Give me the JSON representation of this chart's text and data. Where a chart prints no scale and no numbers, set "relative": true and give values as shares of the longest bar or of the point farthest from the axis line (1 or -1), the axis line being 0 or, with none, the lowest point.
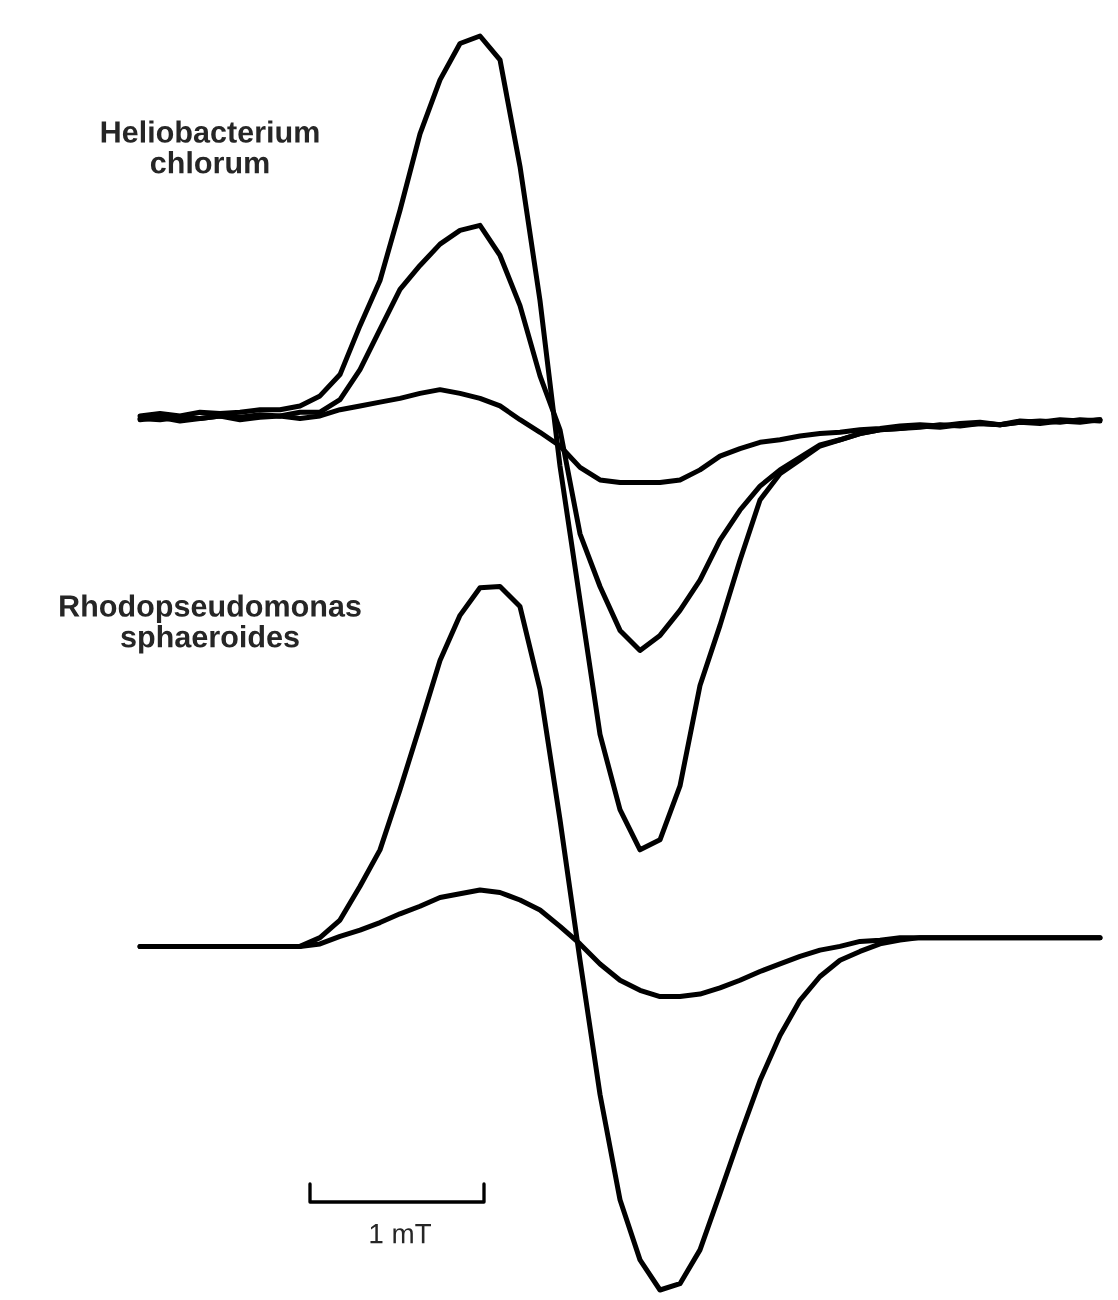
{
  "chart_data": {
    "type": "line",
    "relative": true,
    "categories": [
      null,
      null,
      null,
      null,
      null,
      null,
      null,
      null,
      null,
      null,
      null,
      null,
      null,
      null,
      null,
      null,
      null,
      null,
      null,
      null,
      null,
      null,
      null,
      null,
      null,
      null,
      null,
      null,
      null,
      null,
      null,
      null,
      null,
      null,
      null,
      null,
      null,
      null,
      null,
      null,
      null,
      null,
      null,
      null,
      null,
      null,
      null,
      null,
      null
    ],
    "series": [
      {
        "color": "#000000",
        "values": [
          0.697,
          0.699,
          0.697,
          0.7,
          0.699,
          0.7,
          0.702,
          0.702,
          0.705,
          0.713,
          0.73,
          0.769,
          0.805,
          0.861,
          0.922,
          0.965,
          0.994,
          1.0,
          0.981,
          0.896,
          0.789,
          0.657,
          0.55,
          0.443,
          0.383,
          0.351,
          0.359,
          0.402,
          0.482,
          0.53,
          0.582,
          0.63,
          0.651,
          0.662,
          0.673,
          0.678,
          0.683,
          0.686,
          0.687,
          0.689,
          0.688,
          0.69,
          0.691,
          0.69,
          0.692,
          0.691,
          0.693,
          0.692,
          0.694
        ]
      },
      {
        "color": "#000000",
        "values": [
          0.695,
          0.694,
          0.696,
          0.695,
          0.697,
          0.696,
          0.698,
          0.697,
          0.7,
          0.7,
          0.71,
          0.734,
          0.766,
          0.798,
          0.817,
          0.834,
          0.845,
          0.849,
          0.825,
          0.785,
          0.729,
          0.686,
          0.603,
          0.561,
          0.526,
          0.51,
          0.522,
          0.542,
          0.566,
          0.598,
          0.622,
          0.641,
          0.654,
          0.664,
          0.674,
          0.678,
          0.683,
          0.686,
          0.687,
          0.688,
          0.69,
          0.689,
          0.691,
          0.69,
          0.692,
          0.693,
          0.692,
          0.694,
          0.693
        ]
      },
      {
        "color": "#000000",
        "values": [
          0.694,
          0.696,
          0.693,
          0.695,
          0.697,
          0.694,
          0.696,
          0.697,
          0.695,
          0.697,
          0.702,
          0.705,
          0.708,
          0.711,
          0.715,
          0.718,
          0.715,
          0.711,
          0.705,
          0.694,
          0.684,
          0.673,
          0.656,
          0.646,
          0.644,
          0.644,
          0.644,
          0.646,
          0.654,
          0.665,
          0.671,
          0.676,
          0.678,
          0.681,
          0.683,
          0.684,
          0.686,
          0.687,
          0.689,
          0.69,
          0.689,
          0.691,
          0.692,
          0.69,
          0.693,
          0.692,
          0.694,
          0.693,
          0.694
        ]
      },
      {
        "color": "#000000",
        "values": [
          0.274,
          0.274,
          0.274,
          0.274,
          0.274,
          0.274,
          0.274,
          0.274,
          0.274,
          0.281,
          0.295,
          0.322,
          0.351,
          0.399,
          0.45,
          0.502,
          0.538,
          0.56,
          0.561,
          0.545,
          0.479,
          0.375,
          0.263,
          0.156,
          0.072,
          0.024,
          0,
          0.005,
          0.032,
          0.077,
          0.123,
          0.167,
          0.203,
          0.231,
          0.25,
          0.263,
          0.27,
          0.276,
          0.279,
          0.281,
          0.281,
          0.281,
          0.281,
          0.281,
          0.281,
          0.281,
          0.281,
          0.281,
          0.281
        ]
      },
      {
        "color": "#000000",
        "values": [
          0.274,
          0.274,
          0.274,
          0.274,
          0.274,
          0.274,
          0.274,
          0.274,
          0.274,
          0.276,
          0.282,
          0.287,
          0.293,
          0.3,
          0.306,
          0.313,
          0.316,
          0.319,
          0.317,
          0.311,
          0.303,
          0.29,
          0.276,
          0.26,
          0.247,
          0.239,
          0.234,
          0.234,
          0.236,
          0.241,
          0.247,
          0.254,
          0.26,
          0.266,
          0.271,
          0.274,
          0.278,
          0.279,
          0.281,
          0.281,
          0.281,
          0.281,
          0.281,
          0.281,
          0.281,
          0.281,
          0.281,
          0.281,
          0.281
        ]
      }
    ],
    "annotations": [
      "Heliobacterium\nchlorum",
      "Rhodopseudomonas\nsphaeroides",
      "1 mT"
    ]
  }
}
